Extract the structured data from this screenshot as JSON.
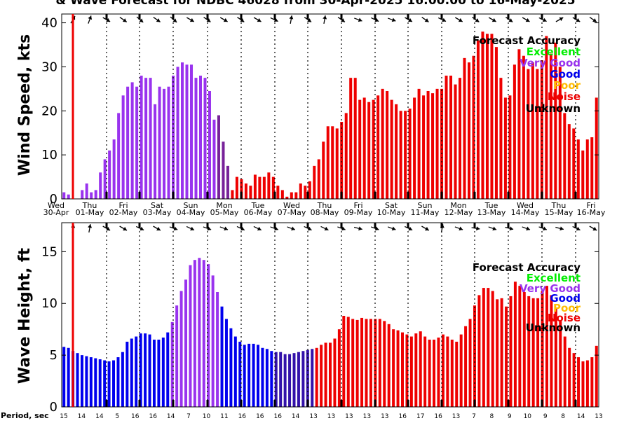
{
  "title": "& Wave Forecast for NDBC 46028 from 30-Apr-2025 16:00:00 to 16-May-2025",
  "legend": {
    "title": "Forecast Accuracy",
    "items": [
      {
        "label": "Excellent",
        "color": "#00ee00"
      },
      {
        "label": "Very Good",
        "color": "#9933ee"
      },
      {
        "label": "Good",
        "color": "#0000ee"
      },
      {
        "label": "Poor",
        "color": "#ffbb00"
      },
      {
        "label": "Noise",
        "color": "#ee0000"
      },
      {
        "label": "Unknown",
        "color": "#000000"
      }
    ]
  },
  "period_label": "Period, sec",
  "periods": [
    "15",
    "14",
    "14",
    "5",
    "16",
    "16",
    "14",
    "7",
    "10",
    "11",
    "16",
    "16",
    "16",
    "14",
    "13",
    "13",
    "13",
    "13",
    "13",
    "16",
    "17",
    "16",
    "13",
    "7",
    "8",
    "9",
    "10",
    "9",
    "8",
    "14",
    "13"
  ],
  "chart_data": [
    {
      "type": "bar",
      "name": "wind",
      "ylabel": "Wind Speed, kts",
      "ylim": [
        0,
        42
      ],
      "yticks": [
        0,
        10,
        20,
        30,
        40
      ],
      "day_names": [
        "Wed",
        "Thu",
        "Fri",
        "Sat",
        "Sun",
        "Mon",
        "Tue",
        "Wed",
        "Thu",
        "Fri",
        "Sat",
        "Sun",
        "Mon",
        "Tue",
        "Wed",
        "Thu",
        "Fri"
      ],
      "date_labels": [
        "30-Apr",
        "01-May",
        "02-May",
        "03-May",
        "04-May",
        "05-May",
        "06-May",
        "07-May",
        "08-May",
        "09-May",
        "10-May",
        "11-May",
        "12-May",
        "13-May",
        "14-May",
        "15-May",
        "16-May"
      ],
      "values": [
        1.5,
        1,
        0,
        0,
        2,
        3.5,
        1.5,
        2,
        6,
        9,
        11,
        13.5,
        19.5,
        23.5,
        25.5,
        26.5,
        25.5,
        28,
        27.5,
        27.5,
        21.5,
        25.5,
        25,
        25.5,
        28,
        30,
        31,
        30.5,
        30.5,
        27.5,
        28,
        27.5,
        24.5,
        18,
        19,
        13,
        7.5,
        2,
        5,
        4.5,
        3.5,
        3,
        5.5,
        5,
        5,
        6,
        5,
        3,
        2,
        0.5,
        1.5,
        1.5,
        3.5,
        3,
        4,
        7.5,
        9,
        13,
        16.5,
        16.5,
        16,
        17.5,
        19.5,
        27.5,
        27.5,
        22.5,
        23,
        22,
        22.5,
        23.5,
        25,
        24.5,
        22.5,
        21.5,
        20,
        20,
        20.5,
        23,
        25,
        23.5,
        24.5,
        24,
        25,
        25,
        28,
        28,
        26,
        27.5,
        32,
        31,
        32.5,
        36,
        38,
        37.5,
        37.5,
        34.5,
        27.5,
        23,
        23.5,
        30.5,
        34,
        32.5,
        29.5,
        31,
        29.5,
        31.5,
        37,
        33,
        35.5,
        30,
        19.5,
        17,
        16,
        13.5,
        11,
        13.5,
        14,
        23
      ],
      "tiers": [
        [
          0,
          33,
          "verygood"
        ],
        [
          34,
          36,
          "verygood2"
        ],
        [
          37,
          117,
          "noise"
        ]
      ]
    },
    {
      "type": "bar",
      "name": "wave",
      "ylabel": "Wave Height, ft",
      "ylim": [
        0,
        17.8
      ],
      "yticks": [
        0,
        5,
        10,
        15
      ],
      "values": [
        5.8,
        5.7,
        5.4,
        5.2,
        5,
        4.9,
        4.8,
        4.7,
        4.6,
        4.5,
        4.4,
        4.5,
        4.8,
        5.3,
        6.3,
        6.6,
        6.8,
        7.1,
        7.1,
        7,
        6.5,
        6.5,
        6.7,
        7.2,
        8.2,
        9.8,
        11.2,
        12.3,
        13.7,
        14.2,
        14.4,
        14.2,
        13.8,
        12.7,
        11.1,
        9.7,
        8.5,
        7.6,
        6.8,
        6.3,
        6,
        6.1,
        6.1,
        6,
        5.7,
        5.6,
        5.4,
        5.3,
        5.3,
        5.1,
        5.1,
        5.2,
        5.3,
        5.4,
        5.5,
        5.6,
        5.7,
        6,
        6.2,
        6.2,
        6.6,
        7.5,
        8.8,
        8.7,
        8.5,
        8.4,
        8.6,
        8.5,
        8.5,
        8.5,
        8.5,
        8.3,
        8,
        7.5,
        7.4,
        7.2,
        7,
        6.8,
        7.1,
        7.3,
        6.8,
        6.5,
        6.5,
        6.7,
        7,
        6.8,
        6.5,
        6.3,
        7,
        7.8,
        8.5,
        9.8,
        10.8,
        11.5,
        11.5,
        11.2,
        10.4,
        10.5,
        9.7,
        10.7,
        12.1,
        11.7,
        11.1,
        10.7,
        10.5,
        10.5,
        11.2,
        11.7,
        10.8,
        9.6,
        8.3,
        6.8,
        5.7,
        5.2,
        4.8,
        4.4,
        4.5,
        4.8,
        5.9
      ],
      "tiers": [
        [
          0,
          13,
          "good"
        ],
        [
          14,
          23,
          "good"
        ],
        [
          24,
          34,
          "verygood"
        ],
        [
          35,
          46,
          "good"
        ],
        [
          47,
          55,
          "good2"
        ],
        [
          56,
          117,
          "noise"
        ]
      ]
    }
  ],
  "colors": {
    "verygood": "#9933ee",
    "verygood2": "#772299",
    "good": "#0000ee",
    "good2": "#3311aa",
    "noise": "#ee0000",
    "axis": "#000000",
    "marker": "#ee0000"
  }
}
